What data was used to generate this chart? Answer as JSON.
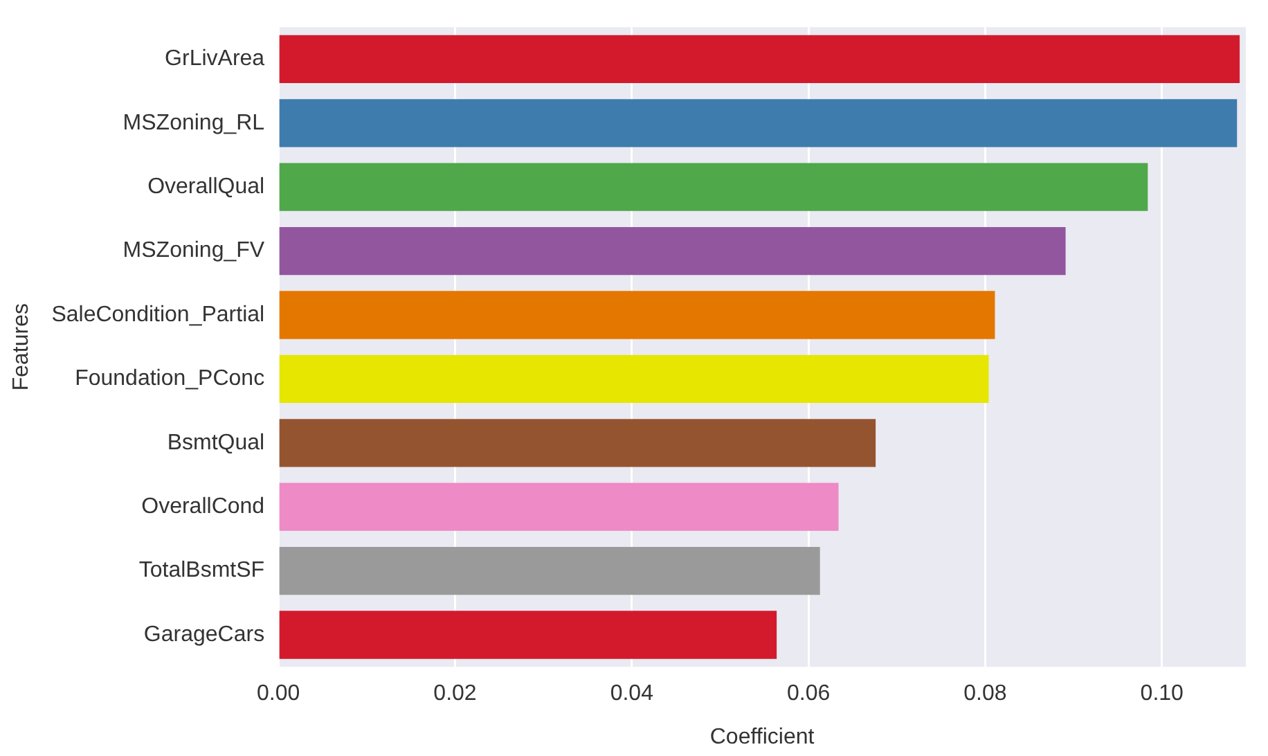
{
  "chart_data": {
    "type": "bar",
    "orientation": "horizontal",
    "xlabel": "Coefficient",
    "ylabel": "Features",
    "categories": [
      "GrLivArea",
      "MSZoning_RL",
      "OverallQual",
      "MSZoning_FV",
      "SaleCondition_Partial",
      "Foundation_PConc",
      "BsmtQual",
      "OverallCond",
      "TotalBsmtSF",
      "GarageCars"
    ],
    "values": [
      0.1088,
      0.1085,
      0.0984,
      0.0891,
      0.0811,
      0.0804,
      0.0676,
      0.0634,
      0.0613,
      0.0564
    ],
    "colors": [
      "#d21a2c",
      "#3d7cad",
      "#4fa84a",
      "#92569e",
      "#e47700",
      "#e6e600",
      "#955430",
      "#ee8ac5",
      "#9a9a9a",
      "#d21a2c"
    ],
    "xlim": [
      0,
      0.1095
    ],
    "xticks": [
      {
        "value": 0,
        "label": "0.00"
      },
      {
        "value": 0.02,
        "label": "0.02"
      },
      {
        "value": 0.04,
        "label": "0.04"
      },
      {
        "value": 0.06,
        "label": "0.06"
      },
      {
        "value": 0.08,
        "label": "0.08"
      },
      {
        "value": 0.1,
        "label": "0.10"
      }
    ],
    "grid": "x",
    "legend": false
  }
}
